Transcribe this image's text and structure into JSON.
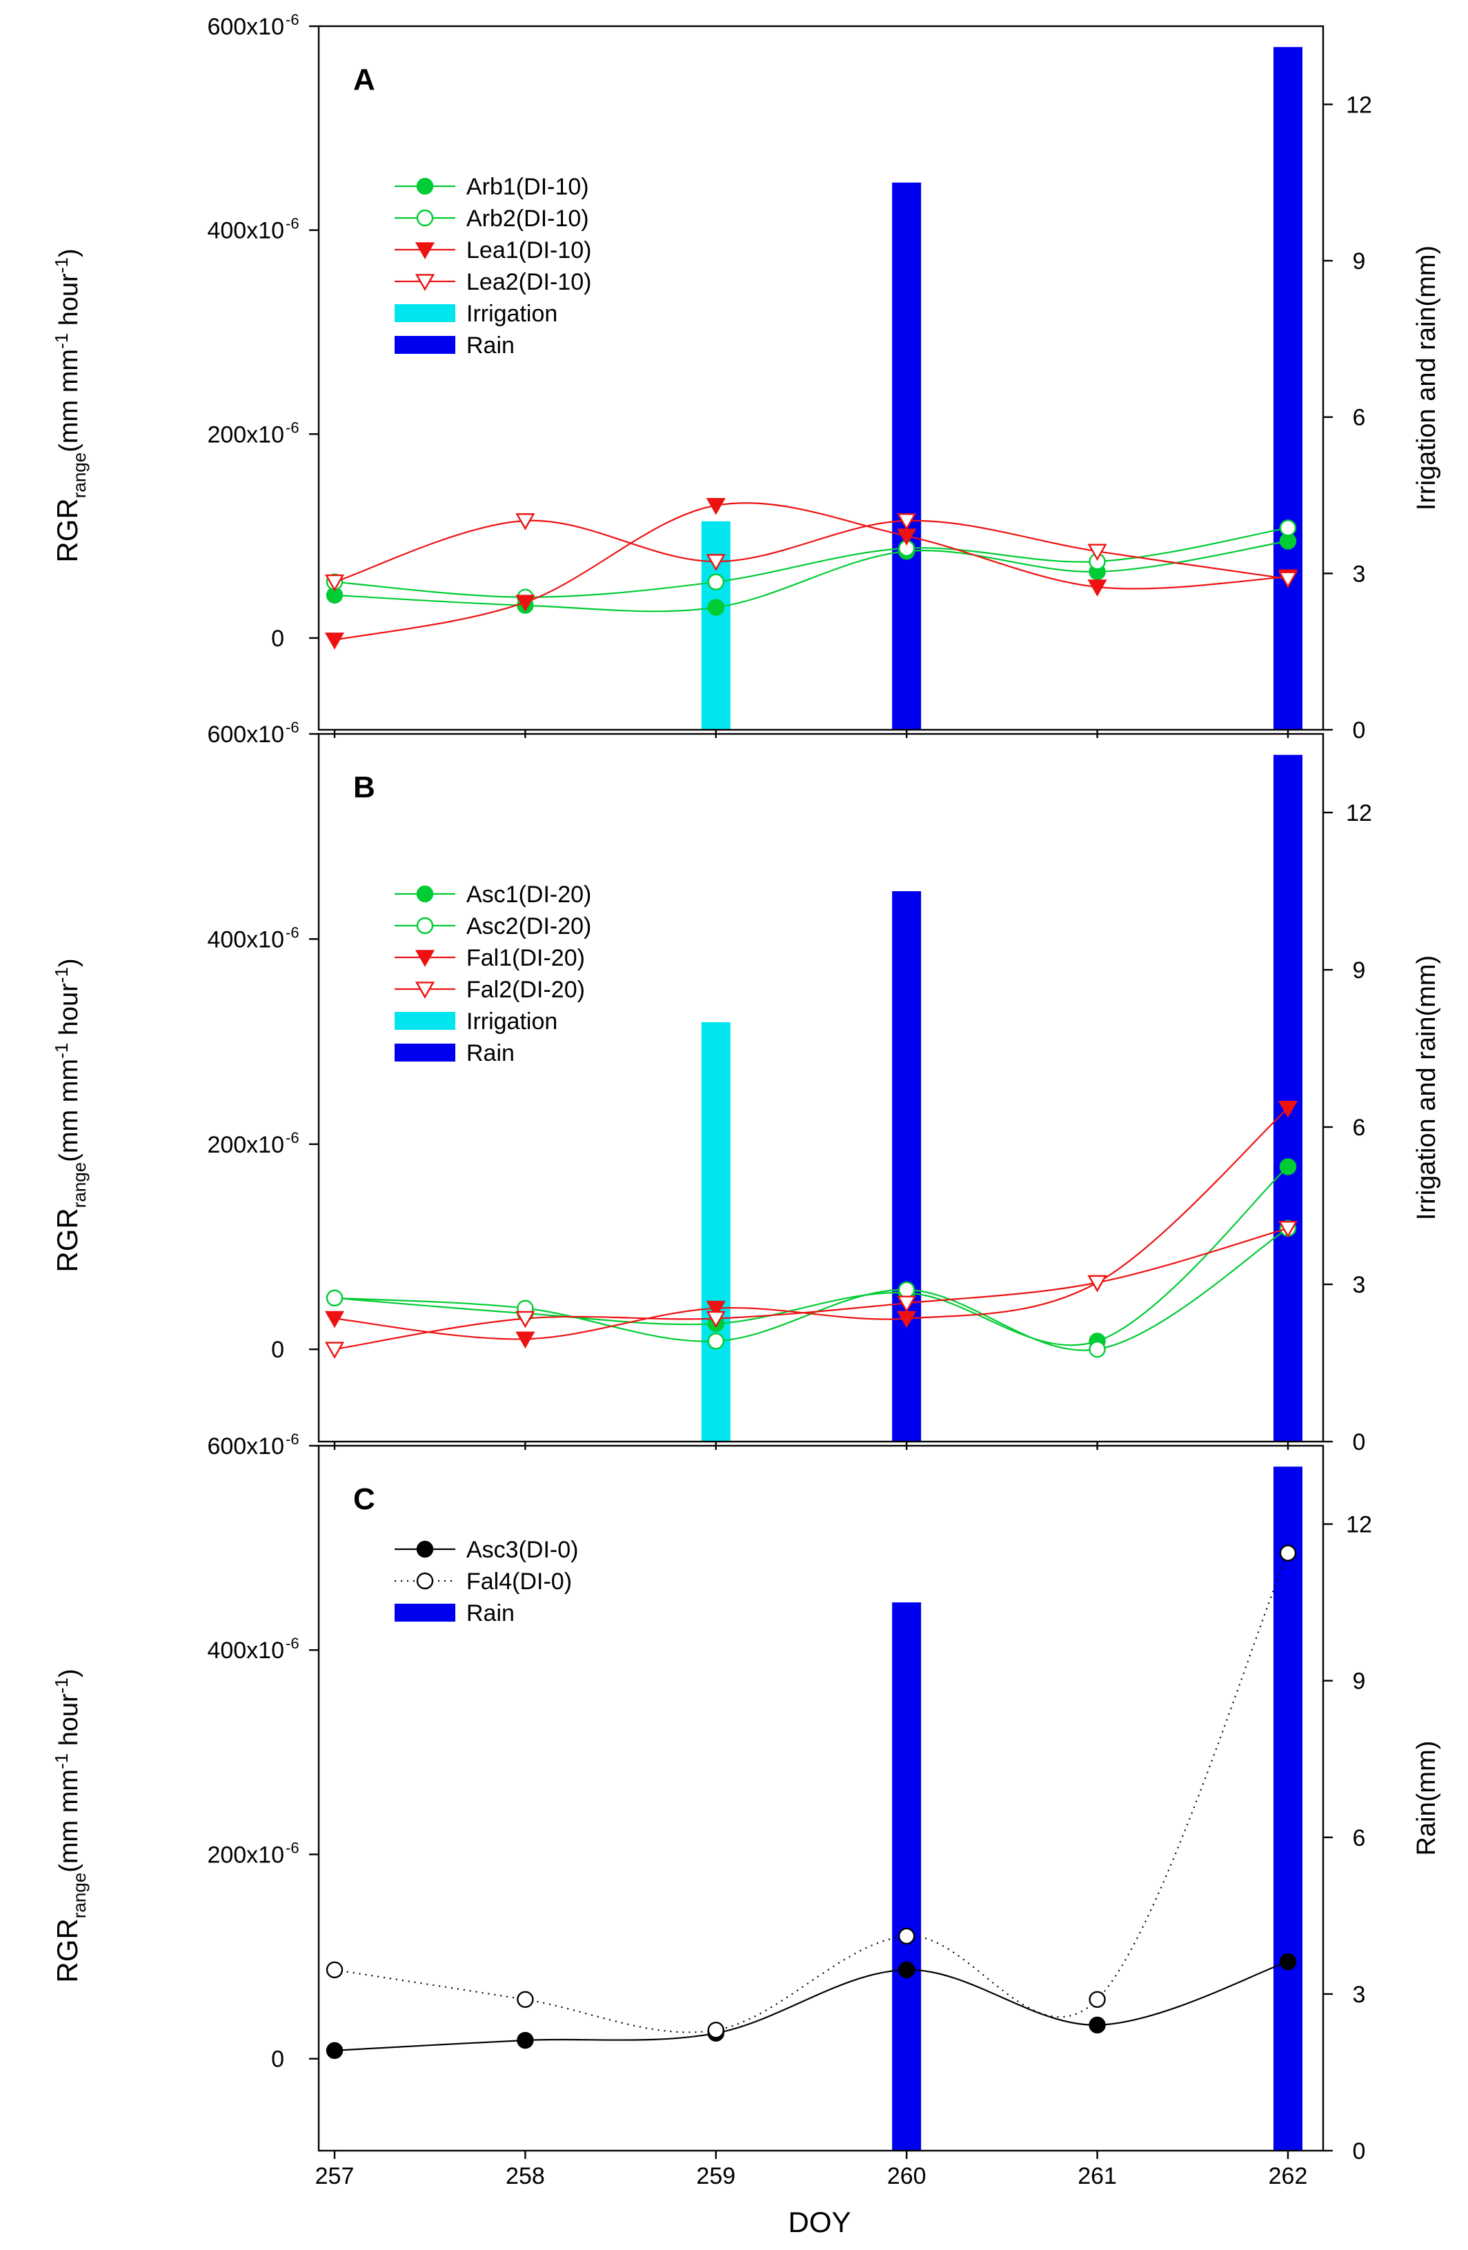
{
  "figure": {
    "x_label": "DOY",
    "x_ticks": [
      "257",
      "258",
      "259",
      "260",
      "261",
      "262"
    ]
  },
  "chart_data": [
    {
      "type": "line+bar",
      "panel_label": "A",
      "left_axis": {
        "label_main": "RGR",
        "label_sub": "range",
        "label_unit_prefix": "(mm mm",
        "label_unit_exp1": "-1",
        "label_unit_mid": " hour",
        "label_unit_exp2": "-1",
        "label_unit_suffix": ")",
        "ylim": [
          -90,
          600
        ],
        "tick_values": [
          0,
          200,
          400,
          600
        ],
        "tick_labels": [
          "0",
          "200x10",
          "400x10",
          "600x10"
        ],
        "tick_exponent": "-6"
      },
      "right_axis": {
        "label": "Irrigation and rain(mm)",
        "ylim": [
          0,
          13.5
        ],
        "ticks": [
          0,
          3,
          6,
          9,
          12
        ]
      },
      "x": [
        257,
        258,
        259,
        260,
        261,
        262
      ],
      "bars": [
        {
          "name": "Irrigation",
          "color": "#00e5ee",
          "x": 259,
          "value": 4.0
        },
        {
          "name": "Rain",
          "color": "#0000f0",
          "x": 260,
          "value": 10.5
        },
        {
          "name": "Rain",
          "color": "#0000f0",
          "x": 262,
          "value": 13.1
        }
      ],
      "series": [
        {
          "name": "Arb1(DI-10)",
          "color": "#00cc33",
          "marker": "circle",
          "filled": true,
          "dash": "",
          "values": [
            42,
            32,
            30,
            85,
            65,
            95
          ]
        },
        {
          "name": "Arb2(DI-10)",
          "color": "#00cc33",
          "marker": "circle",
          "filled": false,
          "dash": "",
          "values": [
            55,
            40,
            55,
            88,
            75,
            108
          ]
        },
        {
          "name": "Lea1(DI-10)",
          "color": "#ee1111",
          "marker": "triangle-down",
          "filled": true,
          "dash": "",
          "values": [
            -2,
            35,
            130,
            100,
            50,
            60
          ]
        },
        {
          "name": "Lea2(DI-10)",
          "color": "#ee1111",
          "marker": "triangle-down",
          "filled": false,
          "dash": "",
          "values": [
            55,
            115,
            75,
            115,
            85,
            58
          ]
        }
      ],
      "legend": [
        "Arb1(DI-10)",
        "Arb2(DI-10)",
        "Lea1(DI-10)",
        "Lea2(DI-10)",
        "Irrigation",
        "Rain"
      ]
    },
    {
      "type": "line+bar",
      "panel_label": "B",
      "left_axis": {
        "label_main": "RGR",
        "label_sub": "range",
        "label_unit_prefix": "(mm mm",
        "label_unit_exp1": "-1",
        "label_unit_mid": " hour",
        "label_unit_exp2": "-1",
        "label_unit_suffix": ")",
        "ylim": [
          -90,
          600
        ],
        "tick_values": [
          0,
          200,
          400,
          600
        ],
        "tick_labels": [
          "0",
          "200x10",
          "400x10",
          "600x10"
        ],
        "tick_exponent": "-6"
      },
      "right_axis": {
        "label": "Irrigation and rain(mm)",
        "ylim": [
          0,
          13.5
        ],
        "ticks": [
          0,
          3,
          6,
          9,
          12
        ]
      },
      "x": [
        257,
        258,
        259,
        260,
        261,
        262
      ],
      "bars": [
        {
          "name": "Irrigation",
          "color": "#00e5ee",
          "x": 259,
          "value": 8.0
        },
        {
          "name": "Rain",
          "color": "#0000f0",
          "x": 260,
          "value": 10.5
        },
        {
          "name": "Rain",
          "color": "#0000f0",
          "x": 262,
          "value": 13.1
        }
      ],
      "series": [
        {
          "name": "Asc1(DI-20)",
          "color": "#00cc33",
          "marker": "circle",
          "filled": true,
          "dash": "",
          "values": [
            50,
            35,
            25,
            55,
            8,
            178
          ]
        },
        {
          "name": "Asc2(DI-20)",
          "color": "#00cc33",
          "marker": "circle",
          "filled": false,
          "dash": "",
          "values": [
            50,
            40,
            8,
            58,
            0,
            118
          ]
        },
        {
          "name": "Fal1(DI-20)",
          "color": "#ee1111",
          "marker": "triangle-down",
          "filled": true,
          "dash": "",
          "values": [
            30,
            10,
            40,
            30,
            65,
            235
          ]
        },
        {
          "name": "Fal2(DI-20)",
          "color": "#ee1111",
          "marker": "triangle-down",
          "filled": false,
          "dash": "",
          "values": [
            0,
            30,
            30,
            45,
            65,
            118
          ]
        }
      ],
      "legend": [
        "Asc1(DI-20)",
        "Asc2(DI-20)",
        "Fal1(DI-20)",
        "Fal2(DI-20)",
        "Irrigation",
        "Rain"
      ]
    },
    {
      "type": "line+bar",
      "panel_label": "C",
      "left_axis": {
        "label_main": "RGR",
        "label_sub": "range",
        "label_unit_prefix": "(mm mm",
        "label_unit_exp1": "-1",
        "label_unit_mid": " hour",
        "label_unit_exp2": "-1",
        "label_unit_suffix": ")",
        "ylim": [
          -90,
          600
        ],
        "tick_values": [
          0,
          200,
          400,
          600
        ],
        "tick_labels": [
          "0",
          "200x10",
          "400x10",
          "600x10"
        ],
        "tick_exponent": "-6"
      },
      "right_axis": {
        "label": "Rain(mm)",
        "ylim": [
          0,
          13.5
        ],
        "ticks": [
          0,
          3,
          6,
          9,
          12
        ]
      },
      "x": [
        257,
        258,
        259,
        260,
        261,
        262
      ],
      "bars": [
        {
          "name": "Rain",
          "color": "#0000f0",
          "x": 260,
          "value": 10.5
        },
        {
          "name": "Rain",
          "color": "#0000f0",
          "x": 262,
          "value": 13.1
        }
      ],
      "series": [
        {
          "name": "Asc3(DI-0)",
          "color": "#000000",
          "marker": "circle",
          "filled": true,
          "dash": "",
          "values": [
            8,
            18,
            25,
            87,
            33,
            95
          ]
        },
        {
          "name": "Fal4(DI-0)",
          "color": "#000000",
          "marker": "circle",
          "filled": false,
          "dash": "dots",
          "values": [
            87,
            58,
            28,
            120,
            58,
            495
          ]
        }
      ],
      "legend": [
        "Asc3(DI-0)",
        "Fal4(DI-0)",
        "Rain"
      ]
    }
  ]
}
